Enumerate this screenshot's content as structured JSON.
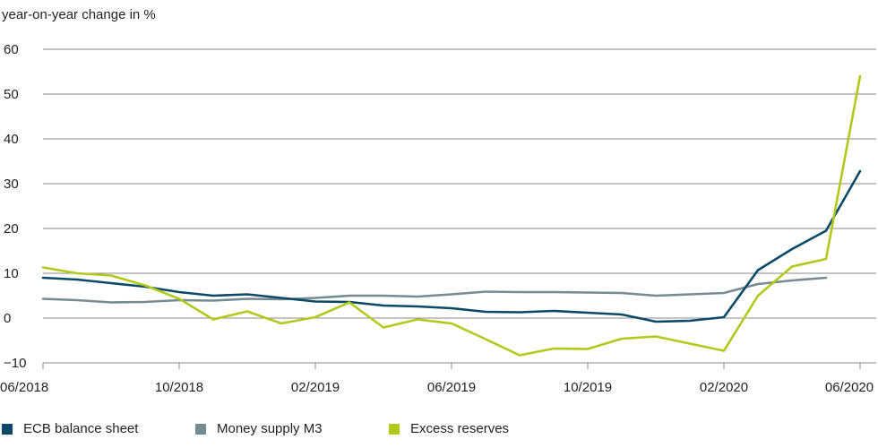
{
  "chart_data": {
    "type": "line",
    "title": "",
    "ylabel": "year-on-year change in %",
    "xlabel": "",
    "ylim": [
      -10,
      60
    ],
    "y_ticks": [
      -10,
      0,
      10,
      20,
      30,
      40,
      50,
      60
    ],
    "y_tick_labels": [
      "−10",
      "0",
      "10",
      "20",
      "30",
      "40",
      "50",
      "60"
    ],
    "grid": "horizontal",
    "legend": "bottom-left",
    "x_tick_labels": [
      "06/2018",
      "10/2018",
      "02/2019",
      "06/2019",
      "10/2019",
      "02/2020",
      "06/2020"
    ],
    "x": [
      "2018-06",
      "2018-07",
      "2018-08",
      "2018-09",
      "2018-10",
      "2018-11",
      "2018-12",
      "2019-01",
      "2019-02",
      "2019-03",
      "2019-04",
      "2019-05",
      "2019-06",
      "2019-07",
      "2019-08",
      "2019-09",
      "2019-10",
      "2019-11",
      "2019-12",
      "2020-01",
      "2020-02",
      "2020-03",
      "2020-04",
      "2020-05",
      "2020-06"
    ],
    "series": [
      {
        "name": "ECB balance sheet",
        "color": "#0b4a66",
        "values": [
          9.0,
          8.6,
          7.8,
          7.0,
          5.8,
          5.0,
          5.3,
          4.5,
          3.7,
          3.6,
          2.8,
          2.6,
          2.2,
          1.4,
          1.3,
          1.6,
          1.2,
          0.8,
          -0.8,
          -0.6,
          0.2,
          10.7,
          15.4,
          19.5,
          32.8
        ]
      },
      {
        "name": "Money supply M3",
        "color": "#768b92",
        "values": [
          4.3,
          4.0,
          3.5,
          3.6,
          4.0,
          3.9,
          4.3,
          4.2,
          4.5,
          5.0,
          5.0,
          4.8,
          5.3,
          5.9,
          5.8,
          5.8,
          5.7,
          5.6,
          5.0,
          5.3,
          5.6,
          7.6,
          8.4,
          9.0,
          null
        ]
      },
      {
        "name": "Excess reserves",
        "color": "#b2c91c",
        "values": [
          11.3,
          10.0,
          9.5,
          7.3,
          4.3,
          -0.3,
          1.5,
          -1.2,
          0.2,
          3.5,
          -2.1,
          -0.3,
          -1.2,
          -4.7,
          -8.3,
          -6.8,
          -6.9,
          -4.6,
          -4.1,
          -5.7,
          -7.3,
          5.0,
          11.5,
          13.2,
          54.0
        ]
      }
    ]
  }
}
